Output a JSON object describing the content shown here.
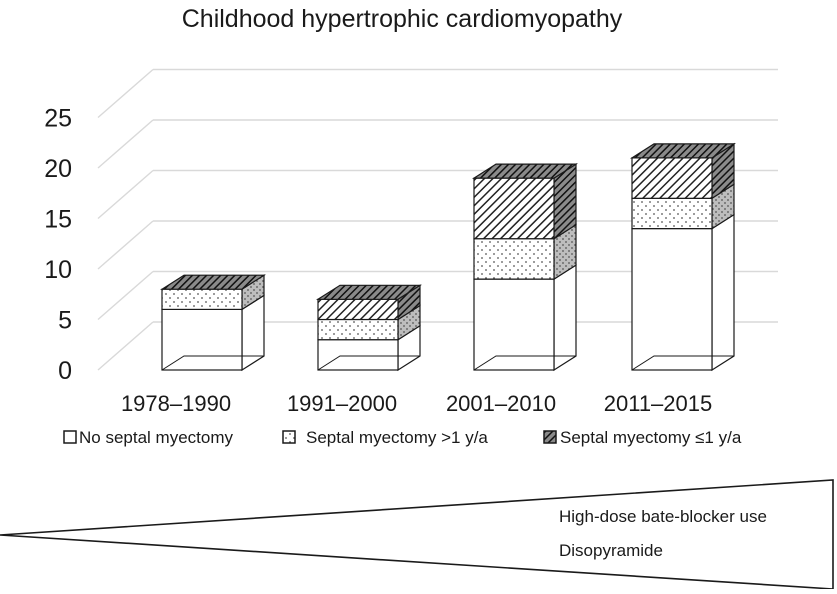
{
  "chart_data": {
    "type": "bar",
    "subtype": "stacked-3d",
    "title": "Childhood hypertrophic cardiomyopathy",
    "xlabel": "",
    "ylabel": "",
    "categories": [
      "1978–1990",
      "1991–2000",
      "2001–2010",
      "2011–2015"
    ],
    "series": [
      {
        "name": "No septal myectomy",
        "values": [
          6,
          3,
          9,
          14
        ]
      },
      {
        "name": "Septal myectomy >1 y/a",
        "values": [
          2,
          2,
          4,
          3
        ]
      },
      {
        "name": "Septal myectomy ≤1 y/a",
        "values": [
          0,
          2,
          6,
          4
        ]
      }
    ],
    "ylim": [
      0,
      25
    ],
    "yticks": [
      0,
      5,
      10,
      15,
      20,
      25
    ],
    "grid": true,
    "legend_position": "bottom",
    "colors": {
      "bar_stroke": "#1a1a1a",
      "no_myectomy_fill": "#ffffff",
      "late_myectomy_dots": "#555555",
      "early_myectomy_hatch": "#222222",
      "grid": "#d9d9d9"
    }
  },
  "wedge": {
    "labels": [
      "High-dose bate-blocker use",
      "Disopyramide"
    ]
  }
}
